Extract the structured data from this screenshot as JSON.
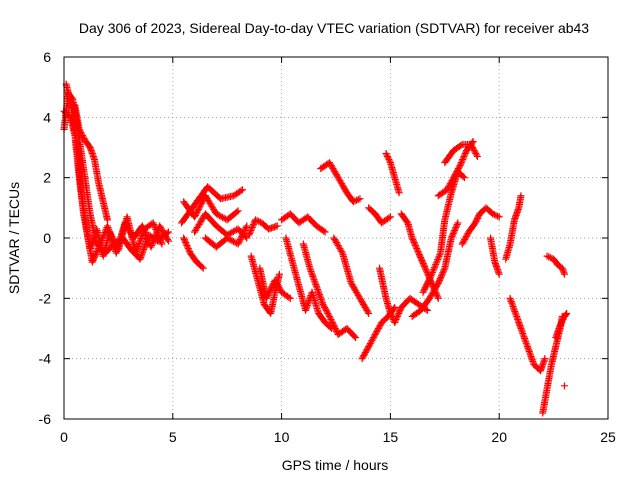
{
  "chart_data": {
    "type": "scatter",
    "title": "Day 306 of 2023, Sidereal Day-to-day VTEC variation (SDTVAR) for receiver ab43",
    "xlabel": "GPS time / hours",
    "ylabel": "SDTVAR / TECUs",
    "xlim": [
      0,
      25
    ],
    "ylim": [
      -6,
      6
    ],
    "xticks": [
      0,
      5,
      10,
      15,
      20,
      25
    ],
    "yticks": [
      -6,
      -4,
      -2,
      0,
      2,
      4,
      6
    ],
    "grid": true,
    "marker": "+",
    "series": [
      {
        "name": "SDTVAR",
        "color": "#ff0000",
        "tracks": [
          [
            [
              0.0,
              3.6
            ],
            [
              0.2,
              4.8
            ],
            [
              0.4,
              4.6
            ],
            [
              0.6,
              3.8
            ],
            [
              0.8,
              2.8
            ],
            [
              1.0,
              1.8
            ],
            [
              1.2,
              0.8
            ],
            [
              1.5,
              -0.2
            ],
            [
              1.9,
              -0.5
            ],
            [
              2.3,
              -0.2
            ],
            [
              2.7,
              0.0
            ],
            [
              3.1,
              -0.4
            ],
            [
              3.5,
              -0.7
            ],
            [
              3.9,
              0.1
            ],
            [
              4.3,
              -0.1
            ],
            [
              4.8,
              0.2
            ]
          ],
          [
            [
              0.0,
              4.2
            ],
            [
              0.3,
              4.0
            ],
            [
              0.5,
              3.4
            ],
            [
              0.7,
              2.0
            ],
            [
              0.9,
              0.8
            ],
            [
              1.1,
              0.0
            ],
            [
              1.3,
              -0.8
            ],
            [
              1.6,
              -0.3
            ],
            [
              2.0,
              0.4
            ],
            [
              2.4,
              -0.5
            ],
            [
              2.8,
              0.5
            ],
            [
              3.2,
              0.0
            ],
            [
              3.6,
              0.4
            ],
            [
              4.0,
              -0.3
            ],
            [
              4.4,
              0.4
            ],
            [
              4.8,
              -0.1
            ]
          ],
          [
            [
              0.1,
              5.1
            ],
            [
              0.3,
              4.5
            ],
            [
              0.6,
              3.0
            ],
            [
              0.8,
              1.5
            ],
            [
              1.0,
              0.5
            ],
            [
              1.2,
              -0.4
            ],
            [
              1.5,
              0.3
            ],
            [
              1.8,
              -0.6
            ],
            [
              2.1,
              0.2
            ],
            [
              2.5,
              -0.4
            ],
            [
              2.9,
              0.7
            ],
            [
              3.3,
              -0.5
            ],
            [
              3.7,
              0.3
            ],
            [
              4.1,
              0.5
            ],
            [
              4.5,
              -0.2
            ]
          ],
          [
            [
              0.5,
              4.4
            ],
            [
              0.7,
              3.6
            ],
            [
              1.0,
              3.2
            ],
            [
              1.2,
              3.0
            ],
            [
              1.4,
              2.6
            ],
            [
              1.6,
              1.8
            ],
            [
              1.8,
              1.2
            ],
            [
              2.0,
              0.6
            ]
          ],
          [
            [
              5.5,
              0.0
            ],
            [
              5.8,
              -0.5
            ],
            [
              6.1,
              -0.8
            ],
            [
              6.4,
              -1.0
            ]
          ],
          [
            [
              5.4,
              0.5
            ],
            [
              6.0,
              1.1
            ],
            [
              6.6,
              1.7
            ],
            [
              7.2,
              1.3
            ],
            [
              7.8,
              1.4
            ],
            [
              8.2,
              1.6
            ]
          ],
          [
            [
              5.5,
              1.2
            ],
            [
              6.0,
              0.7
            ],
            [
              6.5,
              1.4
            ],
            [
              7.0,
              0.8
            ],
            [
              7.5,
              0.6
            ],
            [
              8.0,
              0.9
            ]
          ],
          [
            [
              6.0,
              0.2
            ],
            [
              6.5,
              0.8
            ],
            [
              7.0,
              0.4
            ],
            [
              7.5,
              0.1
            ],
            [
              8.0,
              0.3
            ],
            [
              8.4,
              0.0
            ]
          ],
          [
            [
              6.5,
              0.0
            ],
            [
              7.0,
              -0.3
            ],
            [
              7.5,
              0.0
            ],
            [
              8.0,
              -0.2
            ],
            [
              8.4,
              0.4
            ]
          ],
          [
            [
              8.5,
              0.1
            ],
            [
              8.8,
              0.6
            ],
            [
              9.1,
              0.5
            ],
            [
              9.4,
              0.3
            ],
            [
              9.8,
              0.4
            ]
          ],
          [
            [
              8.6,
              -0.6
            ],
            [
              8.9,
              -1.4
            ],
            [
              9.2,
              -2.2
            ],
            [
              9.5,
              -2.5
            ],
            [
              9.7,
              -1.8
            ],
            [
              9.9,
              -1.2
            ]
          ],
          [
            [
              9.0,
              -1.0
            ],
            [
              9.3,
              -2.0
            ],
            [
              9.7,
              -1.4
            ],
            [
              10.0,
              -1.8
            ],
            [
              10.4,
              -2.0
            ]
          ],
          [
            [
              10.0,
              0.6
            ],
            [
              10.4,
              0.8
            ],
            [
              10.8,
              0.5
            ],
            [
              11.2,
              0.7
            ],
            [
              11.6,
              0.4
            ],
            [
              12.0,
              0.2
            ]
          ],
          [
            [
              10.2,
              0.0
            ],
            [
              10.5,
              -0.8
            ],
            [
              10.8,
              -1.6
            ],
            [
              11.1,
              -2.4
            ],
            [
              11.4,
              -1.8
            ],
            [
              11.7,
              -2.5
            ],
            [
              12.0,
              -2.8
            ],
            [
              12.3,
              -3.0
            ]
          ],
          [
            [
              11.0,
              -0.2
            ],
            [
              11.3,
              -1.0
            ],
            [
              11.6,
              -1.6
            ],
            [
              11.9,
              -2.2
            ],
            [
              12.2,
              -2.6
            ],
            [
              12.6,
              -3.2
            ],
            [
              13.0,
              -3.0
            ],
            [
              13.4,
              -3.3
            ]
          ],
          [
            [
              11.8,
              2.3
            ],
            [
              12.2,
              2.5
            ],
            [
              12.6,
              2.0
            ],
            [
              13.0,
              1.5
            ],
            [
              13.3,
              1.2
            ],
            [
              13.6,
              1.3
            ]
          ],
          [
            [
              12.4,
              0.0
            ],
            [
              12.8,
              -0.5
            ],
            [
              13.2,
              -1.5
            ],
            [
              13.6,
              -2.0
            ],
            [
              14.0,
              -2.5
            ]
          ],
          [
            [
              13.7,
              -4.0
            ],
            [
              14.0,
              -3.6
            ],
            [
              14.3,
              -3.2
            ],
            [
              14.6,
              -2.8
            ],
            [
              14.9,
              -2.6
            ],
            [
              15.2,
              -2.3
            ]
          ],
          [
            [
              14.0,
              1.0
            ],
            [
              14.3,
              0.8
            ],
            [
              14.6,
              0.5
            ],
            [
              14.8,
              0.6
            ],
            [
              15.0,
              0.7
            ]
          ],
          [
            [
              14.8,
              2.8
            ],
            [
              15.0,
              2.5
            ],
            [
              15.2,
              2.0
            ],
            [
              15.4,
              1.5
            ]
          ],
          [
            [
              14.5,
              -1.0
            ],
            [
              14.8,
              -2.0
            ],
            [
              15.0,
              -2.5
            ],
            [
              15.2,
              -2.8
            ],
            [
              15.5,
              -2.3
            ],
            [
              15.9,
              -2.0
            ],
            [
              16.3,
              -2.2
            ],
            [
              16.7,
              -2.4
            ]
          ],
          [
            [
              15.5,
              0.8
            ],
            [
              15.8,
              0.5
            ],
            [
              16.0,
              0.0
            ],
            [
              16.3,
              -0.5
            ],
            [
              16.6,
              -1.0
            ],
            [
              16.9,
              -1.5
            ],
            [
              17.2,
              -2.0
            ]
          ],
          [
            [
              16.0,
              -2.6
            ],
            [
              16.4,
              -2.4
            ],
            [
              16.8,
              -2.0
            ],
            [
              17.2,
              -1.5
            ],
            [
              17.5,
              -1.0
            ],
            [
              17.8,
              0.0
            ],
            [
              18.1,
              0.5
            ]
          ],
          [
            [
              16.5,
              -1.8
            ],
            [
              16.9,
              -1.2
            ],
            [
              17.3,
              -0.5
            ],
            [
              17.5,
              0.6
            ],
            [
              17.8,
              1.5
            ],
            [
              18.1,
              2.2
            ],
            [
              18.4,
              2.0
            ]
          ],
          [
            [
              17.2,
              1.4
            ],
            [
              17.6,
              1.6
            ],
            [
              17.9,
              2.0
            ],
            [
              18.2,
              2.4
            ],
            [
              18.5,
              2.9
            ],
            [
              18.8,
              3.2
            ]
          ],
          [
            [
              18.3,
              -0.2
            ],
            [
              18.6,
              0.2
            ],
            [
              18.9,
              0.5
            ],
            [
              19.1,
              0.8
            ],
            [
              19.4,
              1.0
            ],
            [
              19.7,
              0.8
            ],
            [
              20.0,
              0.7
            ]
          ],
          [
            [
              17.5,
              2.5
            ],
            [
              17.9,
              2.9
            ],
            [
              18.3,
              3.1
            ],
            [
              18.7,
              3.1
            ],
            [
              19.0,
              2.7
            ]
          ],
          [
            [
              19.6,
              0.0
            ],
            [
              19.8,
              -0.8
            ],
            [
              20.0,
              -1.2
            ]
          ],
          [
            [
              20.3,
              -0.7
            ],
            [
              20.5,
              -0.2
            ],
            [
              20.7,
              0.6
            ],
            [
              20.9,
              1.0
            ],
            [
              21.0,
              1.4
            ]
          ],
          [
            [
              20.5,
              -2.0
            ],
            [
              20.8,
              -2.6
            ],
            [
              21.0,
              -3.0
            ],
            [
              21.3,
              -3.6
            ],
            [
              21.6,
              -4.2
            ],
            [
              21.9,
              -4.4
            ],
            [
              22.1,
              -4.0
            ]
          ],
          [
            [
              22.0,
              -5.8
            ],
            [
              22.2,
              -5.0
            ],
            [
              22.4,
              -4.2
            ],
            [
              22.6,
              -3.6
            ],
            [
              22.8,
              -3.0
            ],
            [
              22.9,
              -2.6
            ]
          ],
          [
            [
              22.2,
              -0.6
            ],
            [
              22.5,
              -0.7
            ],
            [
              22.7,
              -0.9
            ],
            [
              22.9,
              -1.0
            ],
            [
              23.0,
              -1.2
            ]
          ],
          [
            [
              22.6,
              -3.3
            ],
            [
              22.8,
              -2.9
            ],
            [
              23.0,
              -2.6
            ],
            [
              23.1,
              -2.5
            ]
          ]
        ],
        "singles": [
          [
            23.0,
            -4.9
          ]
        ]
      }
    ]
  }
}
